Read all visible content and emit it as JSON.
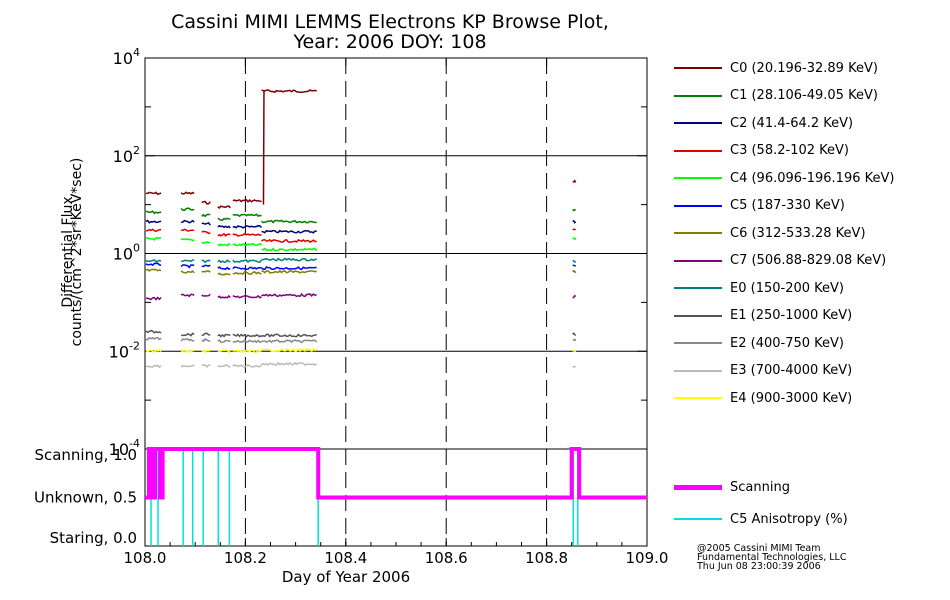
{
  "title_line1": "Cassini MIMI LEMMS Electrons KP Browse Plot,",
  "title_line2": "Year: 2006 DOY: 108",
  "chart_data": [
    {
      "type": "line",
      "panel": "flux",
      "ylabel_line1": "Differential Flux",
      "ylabel_line2": "counts/(cm^2*sr*KeV*sec)",
      "yscale": "log",
      "ylim": [
        0.0001,
        10000
      ],
      "yticks": [
        {
          "base": "10",
          "exp": "4"
        },
        {
          "base": "10",
          "exp": "2"
        },
        {
          "base": "10",
          "exp": "0"
        },
        {
          "base": "10",
          "exp": "-2"
        },
        {
          "base": "10",
          "exp": "-4"
        }
      ],
      "xlim": [
        108.0,
        109.0
      ],
      "segments": [
        [
          108.002,
          108.032
        ],
        [
          108.072,
          108.098
        ],
        [
          108.113,
          108.13
        ],
        [
          108.145,
          108.17
        ],
        [
          108.175,
          108.232
        ],
        [
          108.232,
          108.342
        ],
        [
          108.852,
          108.858
        ]
      ],
      "series": [
        {
          "name": "C0 (20.196-32.89 KeV)",
          "color": "#800000",
          "values": [
            17,
            17,
            11,
            9,
            12,
            2100,
            30
          ]
        },
        {
          "name": "C1 (28.106-49.05 KeV)",
          "color": "#008000",
          "values": [
            7,
            8,
            6,
            5,
            6,
            4.5,
            8
          ]
        },
        {
          "name": "C2 (41.4-64.2 KeV)",
          "color": "#000080",
          "values": [
            4.5,
            4.5,
            4,
            3.5,
            3.5,
            2.8,
            4.5
          ]
        },
        {
          "name": "C3 (58.2-102 KeV)",
          "color": "#e00000",
          "values": [
            3,
            3,
            2.7,
            2.4,
            2.4,
            1.8,
            3
          ]
        },
        {
          "name": "C4 (96.096-196.196 KeV)",
          "color": "#00ff00",
          "values": [
            2,
            1.9,
            1.7,
            1.5,
            1.5,
            1.2,
            2
          ]
        },
        {
          "name": "C5 (187-330 KeV)",
          "color": "#0000ff",
          "values": [
            0.6,
            0.55,
            0.55,
            0.5,
            0.5,
            0.5,
            0.55
          ]
        },
        {
          "name": "C6 (312-533.28 KeV)",
          "color": "#808000",
          "values": [
            0.45,
            0.42,
            0.42,
            0.38,
            0.4,
            0.42,
            0.42
          ]
        },
        {
          "name": "C7 (506.88-829.08 KeV)",
          "color": "#800080",
          "values": [
            0.12,
            0.14,
            0.14,
            0.13,
            0.13,
            0.14,
            0.13
          ]
        },
        {
          "name": "E0 (150-200 KeV)",
          "color": "#008080",
          "values": [
            0.7,
            0.7,
            0.7,
            0.7,
            0.7,
            0.75,
            0.7
          ]
        },
        {
          "name": "E1 (250-1000 KeV)",
          "color": "#555555",
          "values": [
            0.025,
            0.022,
            0.022,
            0.021,
            0.021,
            0.021,
            0.022
          ]
        },
        {
          "name": "E2 (400-750 KeV)",
          "color": "#888888",
          "values": [
            0.018,
            0.017,
            0.017,
            0.016,
            0.016,
            0.016,
            0.017
          ]
        },
        {
          "name": "E3 (700-4000 KeV)",
          "color": "#bbbbbb",
          "values": [
            0.005,
            0.005,
            0.005,
            0.005,
            0.005,
            0.0055,
            0.005
          ]
        },
        {
          "name": "E4 (900-3000 KeV)",
          "color": "#ffff00",
          "values": [
            0.01,
            0.01,
            0.01,
            0.01,
            0.01,
            0.0105,
            0.01
          ]
        }
      ]
    },
    {
      "type": "line",
      "panel": "mode",
      "ylim": [
        0.0,
        1.0
      ],
      "yticks": [
        "Scanning, 1.0",
        "Unknown, 0.5",
        "Staring, 0.0"
      ],
      "xlabel": "Day of Year 2006",
      "xticks": [
        "108.0",
        "108.2",
        "108.4",
        "108.6",
        "108.8",
        "109.0"
      ],
      "xlim": [
        108.0,
        109.0
      ],
      "series": [
        {
          "name": "Scanning",
          "color": "#ff00ff",
          "x": [
            108.0,
            108.008,
            108.008,
            108.012,
            108.012,
            108.02,
            108.02,
            108.03,
            108.03,
            108.035,
            108.035,
            108.05,
            108.05,
            108.345,
            108.345,
            108.85,
            108.85,
            108.865,
            108.865,
            109.0
          ],
          "y": [
            0.5,
            0.5,
            1.0,
            1.0,
            0.5,
            0.5,
            1.0,
            1.0,
            0.5,
            0.5,
            1.0,
            1.0,
            1.0,
            1.0,
            0.5,
            0.5,
            1.0,
            1.0,
            0.5,
            0.5
          ]
        },
        {
          "name": "C5 Anisotropy (%)",
          "color": "#00e0e0",
          "spikes": [
            108.012,
            108.026,
            108.076,
            108.095,
            108.116,
            108.146,
            108.168,
            108.345,
            108.853,
            108.862
          ]
        }
      ]
    }
  ],
  "credit_line1": "@2005 Cassini MIMI Team",
  "credit_line2": "Fundamental Technologies, LLC",
  "credit_line3": "Thu Jun 08 23:00:39 2006"
}
